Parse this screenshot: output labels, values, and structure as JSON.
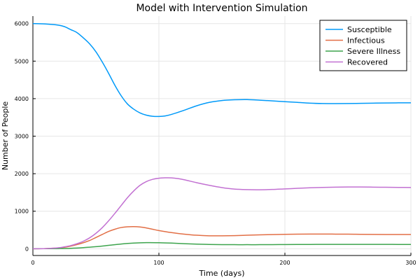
{
  "chart_data": {
    "type": "line",
    "title": "Model with Intervention Simulation",
    "xlabel": "Time (days)",
    "ylabel": "Number of People",
    "xlim": [
      0,
      300
    ],
    "ylim": [
      -180,
      6200
    ],
    "xticks": [
      0,
      100,
      200,
      300
    ],
    "yticks": [
      0,
      1000,
      2000,
      3000,
      4000,
      5000,
      6000
    ],
    "grid": true,
    "legend_position": "top-right",
    "series": [
      {
        "name": "Susceptible",
        "color": "#009af9",
        "x": [
          0,
          10,
          20,
          25,
          30,
          35,
          40,
          45,
          50,
          55,
          60,
          65,
          70,
          75,
          80,
          85,
          90,
          95,
          100,
          105,
          110,
          120,
          130,
          140,
          150,
          160,
          170,
          180,
          190,
          200,
          210,
          220,
          230,
          240,
          250,
          260,
          270,
          280,
          290,
          300
        ],
        "y": [
          6000,
          5990,
          5960,
          5920,
          5840,
          5760,
          5620,
          5460,
          5250,
          4980,
          4680,
          4360,
          4080,
          3860,
          3720,
          3620,
          3560,
          3530,
          3525,
          3540,
          3580,
          3690,
          3810,
          3900,
          3950,
          3970,
          3975,
          3960,
          3940,
          3920,
          3900,
          3880,
          3870,
          3868,
          3870,
          3875,
          3880,
          3885,
          3888,
          3890
        ]
      },
      {
        "name": "Infectious",
        "color": "#e26f46",
        "x": [
          0,
          10,
          20,
          25,
          30,
          35,
          40,
          45,
          50,
          55,
          60,
          65,
          70,
          75,
          80,
          85,
          90,
          95,
          100,
          110,
          120,
          130,
          140,
          150,
          160,
          170,
          180,
          190,
          200,
          210,
          220,
          230,
          240,
          250,
          260,
          270,
          280,
          290,
          300
        ],
        "y": [
          0,
          5,
          20,
          40,
          70,
          110,
          160,
          220,
          300,
          380,
          460,
          520,
          565,
          585,
          590,
          580,
          555,
          520,
          485,
          430,
          390,
          360,
          345,
          345,
          350,
          360,
          370,
          378,
          385,
          390,
          392,
          392,
          390,
          388,
          385,
          382,
          380,
          380,
          380
        ]
      },
      {
        "name": "Severe Illness",
        "color": "#3da44d",
        "x": [
          0,
          10,
          20,
          30,
          40,
          50,
          60,
          70,
          80,
          90,
          100,
          110,
          120,
          130,
          140,
          150,
          160,
          170,
          180,
          190,
          200,
          210,
          220,
          230,
          240,
          250,
          260,
          270,
          280,
          290,
          300
        ],
        "y": [
          0,
          2,
          5,
          12,
          30,
          55,
          90,
          125,
          150,
          162,
          160,
          150,
          135,
          122,
          115,
          110,
          108,
          108,
          108,
          110,
          112,
          114,
          115,
          116,
          117,
          117,
          117,
          116,
          116,
          115,
          115
        ]
      },
      {
        "name": "Recovered",
        "color": "#c271d2",
        "x": [
          0,
          10,
          20,
          25,
          30,
          35,
          40,
          45,
          50,
          55,
          60,
          65,
          70,
          75,
          80,
          85,
          90,
          95,
          100,
          105,
          110,
          115,
          120,
          130,
          140,
          150,
          160,
          170,
          180,
          190,
          200,
          210,
          220,
          230,
          240,
          250,
          260,
          270,
          280,
          290,
          300
        ],
        "y": [
          0,
          5,
          25,
          50,
          85,
          135,
          200,
          290,
          410,
          560,
          740,
          940,
          1150,
          1360,
          1540,
          1690,
          1790,
          1850,
          1880,
          1890,
          1888,
          1870,
          1840,
          1760,
          1690,
          1630,
          1590,
          1575,
          1572,
          1580,
          1595,
          1610,
          1625,
          1635,
          1642,
          1645,
          1645,
          1642,
          1638,
          1635,
          1632
        ]
      }
    ]
  }
}
